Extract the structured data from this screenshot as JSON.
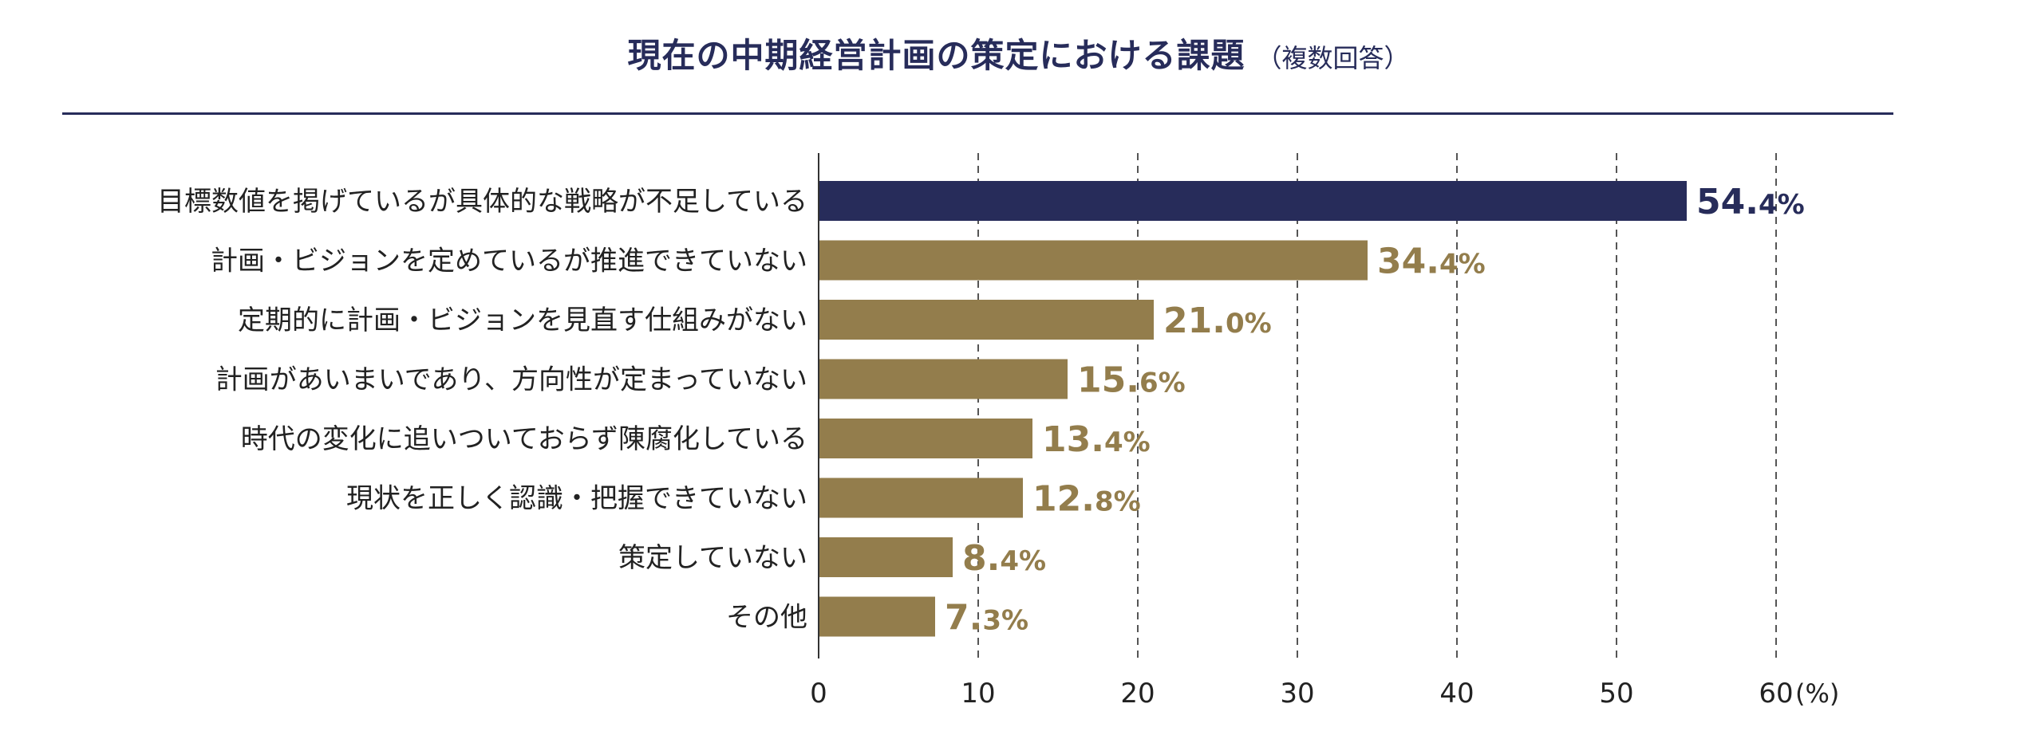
{
  "chart_data": {
    "type": "bar",
    "orientation": "horizontal",
    "title": "現在の中期経営計画の策定における課題",
    "subtitle": "（複数回答）",
    "categories": [
      "目標数値を掲げているが具体的な戦略が不足している",
      "計画・ビジョンを定めているが推進できていない",
      "定期的に計画・ビジョンを見直す仕組みがない",
      "計画があいまいであり、方向性が定まっていない",
      "時代の変化に追いついておらず陳腐化している",
      "現状を正しく認識・把握できていない",
      "策定していない",
      "その他"
    ],
    "values": [
      54.4,
      34.4,
      21.0,
      15.6,
      13.4,
      12.8,
      8.4,
      7.3
    ],
    "value_labels": [
      {
        "num": "54.",
        "dec": "4%"
      },
      {
        "num": "34.",
        "dec": "4%"
      },
      {
        "num": "21.",
        "dec": "0%"
      },
      {
        "num": "15.",
        "dec": "6%"
      },
      {
        "num": "13.",
        "dec": "4%"
      },
      {
        "num": "12.",
        "dec": "8%"
      },
      {
        "num": "8.",
        "dec": "4%"
      },
      {
        "num": "7.",
        "dec": "3%"
      }
    ],
    "xlim": [
      0,
      60
    ],
    "xticks": [
      0,
      10,
      20,
      30,
      40,
      50,
      60
    ],
    "x_unit_label": "(%)",
    "grid": "vertical-dashed",
    "colors": {
      "highlight": "#272c5a",
      "bar": "#937d4c",
      "axis": "#333333",
      "grid": "#555555",
      "text": "#222222"
    }
  }
}
